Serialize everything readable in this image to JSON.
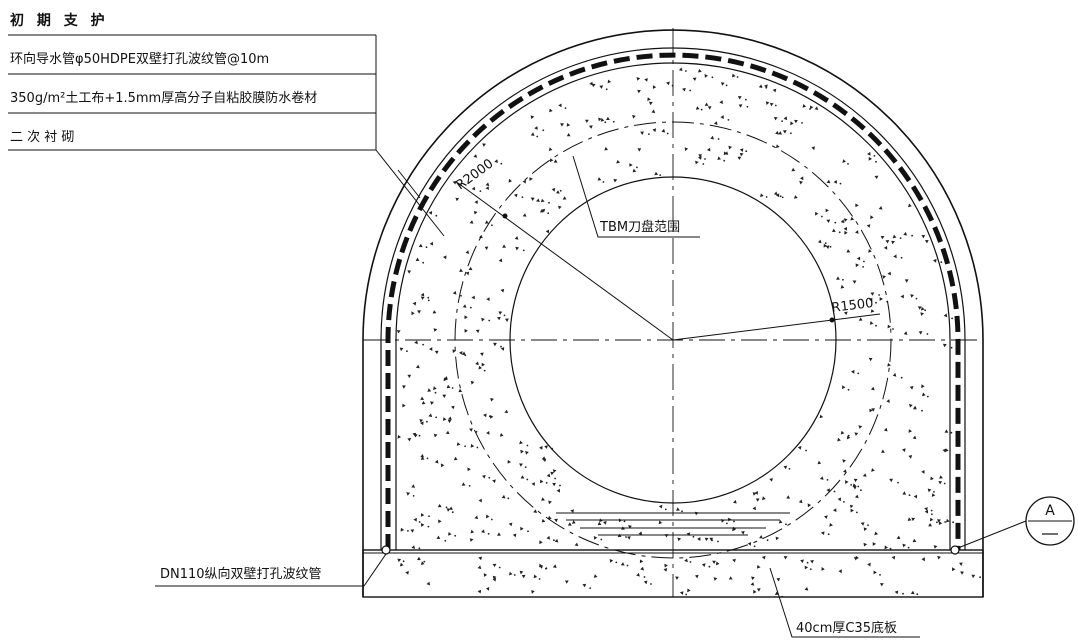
{
  "leader": {
    "title": "初 期 支 护",
    "lines": [
      "环向导水管φ50HDPE双壁打孔波纹管@10m",
      "350g/m²土工布+1.5mm厚高分子自粘胶膜防水卷材",
      "二 次 衬 砌"
    ]
  },
  "labels": {
    "r_outer": "R2000",
    "r_inner": "R1500",
    "tbm": "TBM刀盘范围",
    "dn110": "DN110纵向双壁打孔波纹管",
    "slab": "40cm厚C35底板"
  },
  "section_marker": {
    "letter": "A"
  },
  "colors": {
    "line": "#111111",
    "background": "#ffffff"
  }
}
